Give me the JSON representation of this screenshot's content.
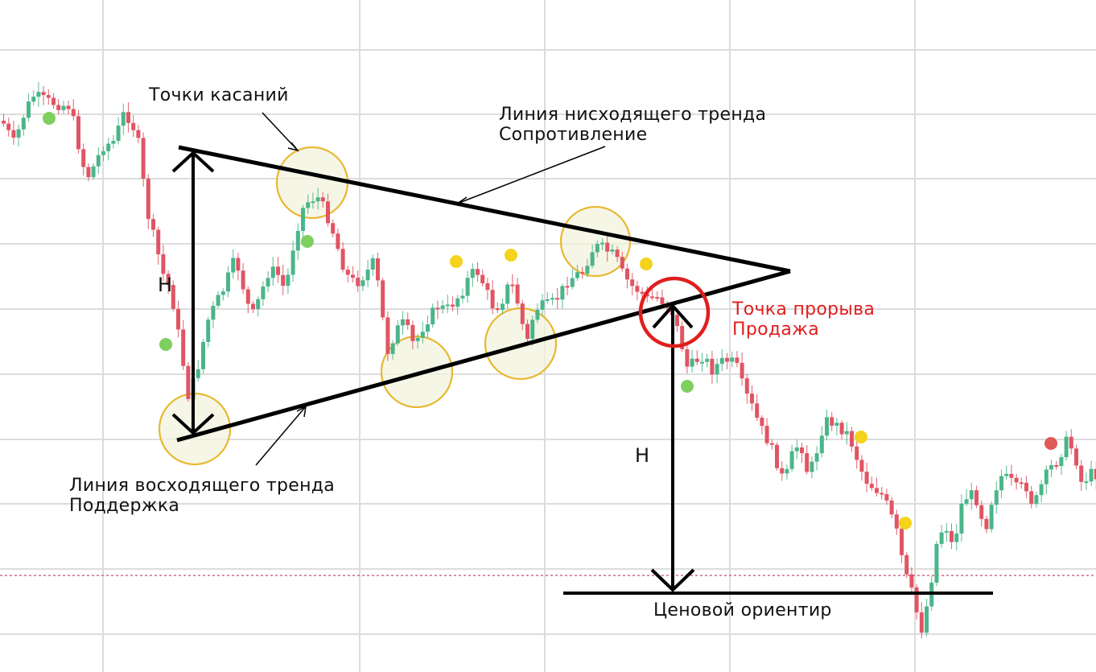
{
  "chart_data": {
    "type": "candlestick",
    "pattern": "symmetrical triangle",
    "grid": true,
    "colors": {
      "up": "#4bb58a",
      "down": "#e05564",
      "grid": "#dcdcdc",
      "line": "#000000",
      "touch_circle": "#e8b830",
      "touch_fill": "#f3f3df",
      "breakout": "#e01e1e",
      "dot_green": "#7ecf5e",
      "dot_yellow": "#f5d21c",
      "dot_red": "#e05a5a",
      "dashed_level": "#c64a6b"
    },
    "annotations": {
      "touch_points": "Точки касаний",
      "downtrend_line_1": "Линия нисходящего тренда",
      "downtrend_line_2": "Сопротивление",
      "uptrend_line_1": "Линия восходящего тренда",
      "uptrend_line_2": "Поддержка",
      "breakout_1": "Точка прорыва",
      "breakout_2": "Продажа",
      "price_target": "Ценовой ориентир",
      "height_left": "H",
      "height_right": "H"
    }
  }
}
